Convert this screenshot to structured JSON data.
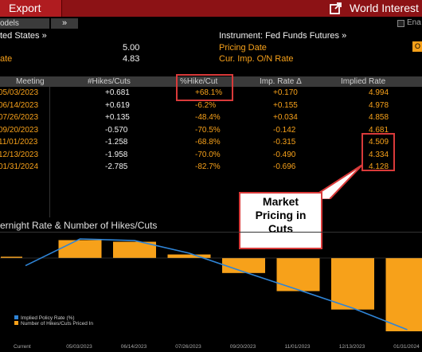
{
  "toolbar": {
    "export_label": "Export",
    "window_title": "World Interest",
    "models_label": "odels",
    "chevron_label": "»",
    "enable_label": "Ena"
  },
  "info": {
    "country": "ted States »",
    "rate_value": "5.00",
    "rate_label": "ate",
    "effective_value": "4.83",
    "instrument": "Instrument: Fed Funds Futures »",
    "pricing_date": "Pricing Date",
    "cur_imp": "Cur. Imp. O/N Rate",
    "o_box": "O"
  },
  "table": {
    "headers": [
      "Meeting",
      "#Hikes/Cuts",
      "%Hike/Cut",
      "Imp. Rate Δ",
      "Implied Rate"
    ],
    "rows": [
      {
        "meeting": "05/03/2023",
        "hikes": "+0.681",
        "pct": "+68.1%",
        "delta": "+0.170",
        "implied": "4.994"
      },
      {
        "meeting": "06/14/2023",
        "hikes": "+0.619",
        "pct": "-6.2%",
        "delta": "+0.155",
        "implied": "4.978"
      },
      {
        "meeting": "07/26/2023",
        "hikes": "+0.135",
        "pct": "-48.4%",
        "delta": "+0.034",
        "implied": "4.858"
      },
      {
        "meeting": "09/20/2023",
        "hikes": "-0.570",
        "pct": "-70.5%",
        "delta": "-0.142",
        "implied": "4.681"
      },
      {
        "meeting": "11/01/2023",
        "hikes": "-1.258",
        "pct": "-68.8%",
        "delta": "-0.315",
        "implied": "4.509"
      },
      {
        "meeting": "12/13/2023",
        "hikes": "-1.958",
        "pct": "-70.0%",
        "delta": "-0.490",
        "implied": "4.334"
      },
      {
        "meeting": "01/31/2024",
        "hikes": "-2.785",
        "pct": "-82.7%",
        "delta": "-0.696",
        "implied": "4.128"
      }
    ]
  },
  "annotation": {
    "line1": "Market",
    "line2": "Pricing in",
    "line3": "Cuts"
  },
  "chart_title": "ernight Rate & Number of Hikes/Cuts",
  "colors": {
    "accent_red": "#8c1215",
    "export_red": "#b01c20",
    "orange": "#f7a11a",
    "line_blue": "#2f84d6",
    "callout_red": "#d93a3a"
  },
  "chart_data": {
    "type": "bar",
    "categories": [
      "Current",
      "05/03/2023",
      "06/14/2023",
      "07/26/2023",
      "09/20/2023",
      "11/01/2023",
      "12/13/2023",
      "01/31/2024"
    ],
    "series": [
      {
        "name": "Number of Hikes/Cuts Priced In",
        "values": [
          0.05,
          0.681,
          0.619,
          0.135,
          -0.57,
          -1.258,
          -1.958,
          -2.785
        ],
        "color": "#f7a11a"
      },
      {
        "name": "Implied Policy Rate (%)",
        "values": [
          4.83,
          4.994,
          4.978,
          4.858,
          4.681,
          4.509,
          4.334,
          4.128
        ],
        "color": "#2f84d6"
      }
    ],
    "bar_range": [
      -2.785,
      0.681
    ],
    "line_range": [
      4.128,
      4.994
    ],
    "legend_position": "bottom-left",
    "grid": false
  }
}
